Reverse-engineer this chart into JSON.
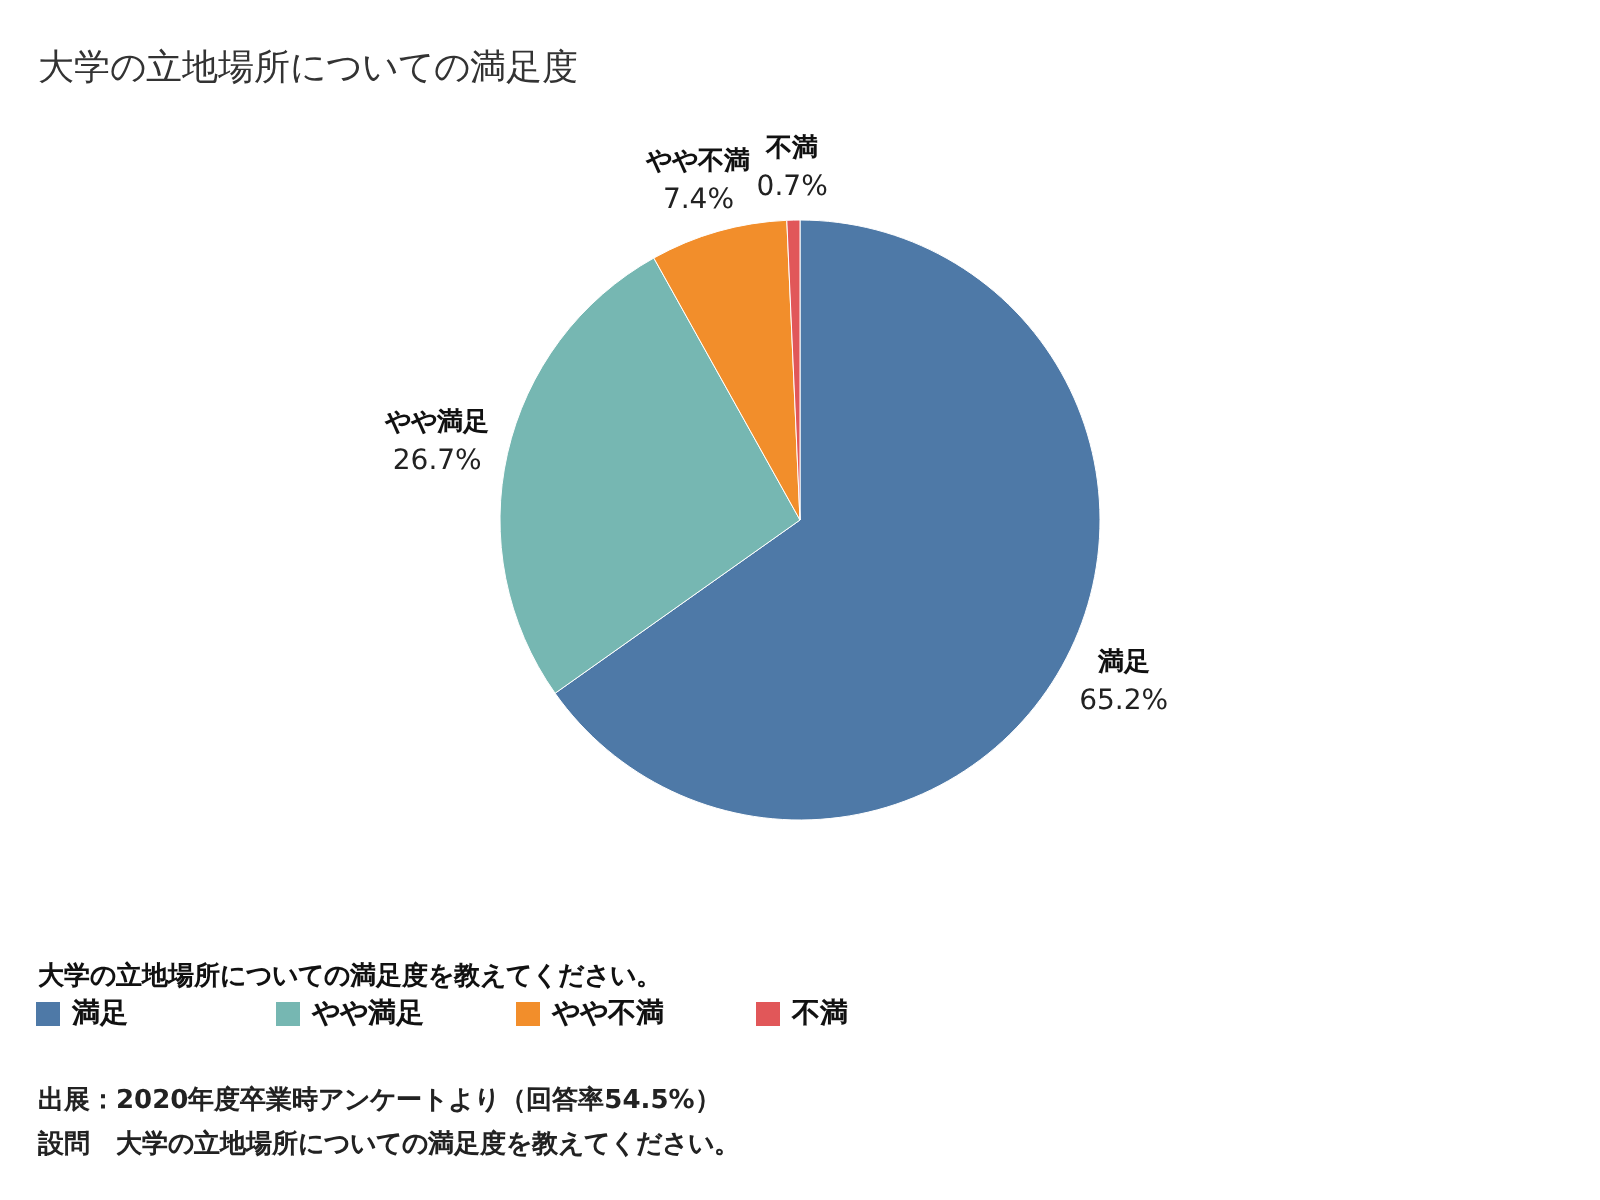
{
  "chart_data": {
    "type": "pie",
    "title": "大学の立地場所についての満足度",
    "legend_title": "大学の立地場所についての満足度を教えてください。",
    "categories": [
      "満足",
      "やや満足",
      "やや不満",
      "不満"
    ],
    "values": [
      65.2,
      26.7,
      7.4,
      0.7
    ],
    "colors": [
      "#4e79a7",
      "#76b7b2",
      "#f28e2b",
      "#e15759"
    ],
    "value_labels": [
      "65.2%",
      "26.7%",
      "7.4%",
      "0.7%"
    ],
    "legend": "bottom left",
    "annotations": [
      "出展：2020年度卒業時アンケートより（回答率54.5%）",
      "設問　大学の立地場所についての満足度を教えてください。"
    ]
  }
}
